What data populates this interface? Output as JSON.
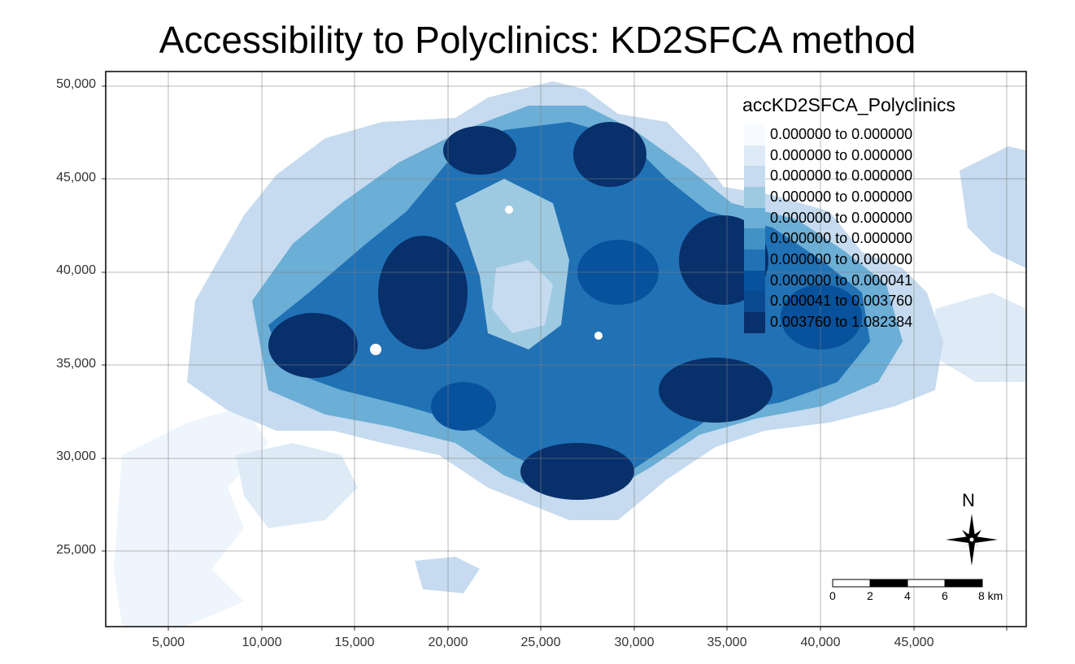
{
  "title": "Accessibility to Polyclinics: KD2SFCA method",
  "y_axis": {
    "ticks": [
      "50,000",
      "45,000",
      "40,000",
      "35,000",
      "30,000",
      "25,000"
    ]
  },
  "x_axis": {
    "ticks": [
      "5,000",
      "10,000",
      "15,000",
      "20,000",
      "25,000",
      "30,000",
      "35,000",
      "40,000",
      "45,000"
    ]
  },
  "legend": {
    "title": "accKD2SFCA_Polyclinics",
    "classes": [
      {
        "label": "0.000000 to 0.000000",
        "color": "#f7fbff"
      },
      {
        "label": "0.000000 to 0.000000",
        "color": "#deebf7"
      },
      {
        "label": "0.000000 to 0.000000",
        "color": "#c6dbef"
      },
      {
        "label": "0.000000 to 0.000000",
        "color": "#9ecae1"
      },
      {
        "label": "0.000000 to 0.000000",
        "color": "#6baed6"
      },
      {
        "label": "0.000000 to 0.000000",
        "color": "#4292c6"
      },
      {
        "label": "0.000000 to 0.000000",
        "color": "#2171b5"
      },
      {
        "label": "0.000000 to 0.000041",
        "color": "#08519c"
      },
      {
        "label": "0.000041 to 0.003760",
        "color": "#0a4a91"
      },
      {
        "label": "0.003760 to 1.082384",
        "color": "#08306b"
      }
    ]
  },
  "north_arrow": {
    "label": "N"
  },
  "scale_bar": {
    "labels": [
      "0",
      "2",
      "4",
      "6",
      "8 km"
    ]
  }
}
